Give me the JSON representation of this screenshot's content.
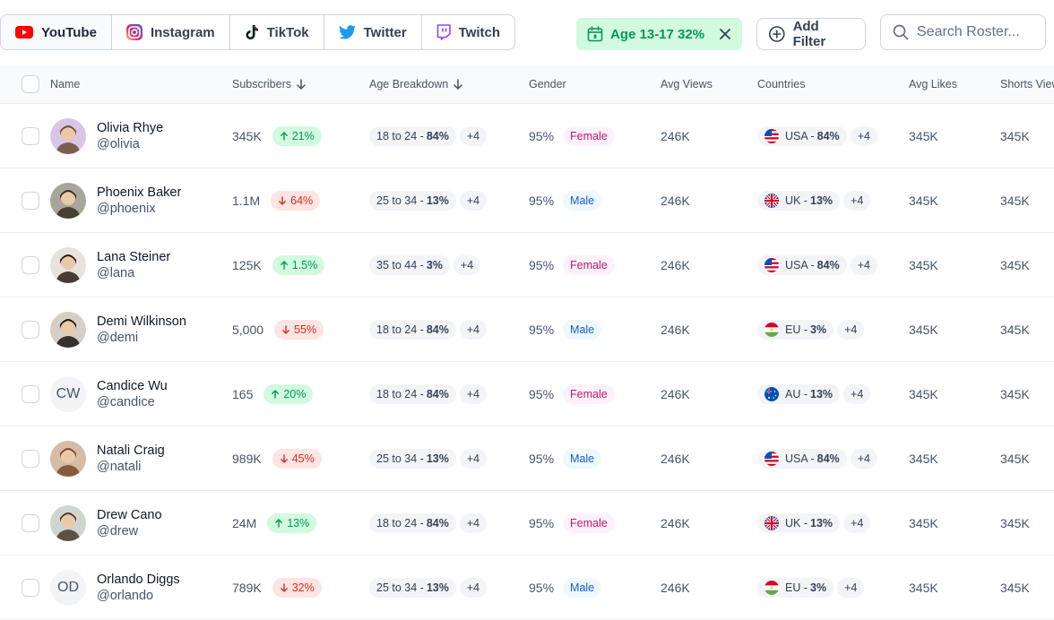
{
  "platforms": [
    {
      "label": "YouTube",
      "icon": "youtube-icon",
      "active": true
    },
    {
      "label": "Instagram",
      "icon": "instagram-icon",
      "active": false
    },
    {
      "label": "TikTok",
      "icon": "tiktok-icon",
      "active": false
    },
    {
      "label": "Twitter",
      "icon": "twitter-icon",
      "active": false
    },
    {
      "label": "Twitch",
      "icon": "twitch-icon",
      "active": false
    }
  ],
  "filter_chip": {
    "label": "Age 13-17 32%"
  },
  "add_filter": {
    "label": "Add Filter"
  },
  "search": {
    "placeholder": "Search Roster...",
    "value": ""
  },
  "columns": {
    "name": "Name",
    "subscribers": "Subscribers",
    "age": "Age Breakdown",
    "gender": "Gender",
    "avg_views": "Avg Views",
    "countries": "Countries",
    "avg_likes": "Avg Likes",
    "shorts_views": "Shorts Views"
  },
  "colors": {
    "up": "#039855",
    "down": "#d92d20",
    "female": "#c11574",
    "male": "#175cd3"
  },
  "rows": [
    {
      "name": "Olivia Rhye",
      "handle": "@olivia",
      "avatar": "photo",
      "subscribers": "345K",
      "trend": "up",
      "trend_value": "21%",
      "age_range": "18 to 24 -",
      "age_pct": "84%",
      "age_more": "+4",
      "gender_pct": "95%",
      "gender": "Female",
      "avg_views": "246K",
      "country_flag": "us",
      "country": "USA -",
      "country_pct": "84%",
      "country_more": "+4",
      "avg_likes": "345K",
      "shorts_views": "345K"
    },
    {
      "name": "Phoenix Baker",
      "handle": "@phoenix",
      "avatar": "photo",
      "subscribers": "1.1M",
      "trend": "down",
      "trend_value": "64%",
      "age_range": "25 to 34 -",
      "age_pct": "13%",
      "age_more": "+4",
      "gender_pct": "95%",
      "gender": "Male",
      "avg_views": "246K",
      "country_flag": "uk",
      "country": "UK -",
      "country_pct": "13%",
      "country_more": "+4",
      "avg_likes": "345K",
      "shorts_views": "345K"
    },
    {
      "name": "Lana Steiner",
      "handle": "@lana",
      "avatar": "photo",
      "subscribers": "125K",
      "trend": "up",
      "trend_value": "1.5%",
      "age_range": "35 to 44 -",
      "age_pct": "3%",
      "age_more": "+4",
      "gender_pct": "95%",
      "gender": "Female",
      "avg_views": "246K",
      "country_flag": "us",
      "country": "USA -",
      "country_pct": "84%",
      "country_more": "+4",
      "avg_likes": "345K",
      "shorts_views": "345K"
    },
    {
      "name": "Demi Wilkinson",
      "handle": "@demi",
      "avatar": "photo",
      "subscribers": "5,000",
      "trend": "down",
      "trend_value": "55%",
      "age_range": "18 to 24 -",
      "age_pct": "84%",
      "age_more": "+4",
      "gender_pct": "95%",
      "gender": "Male",
      "avg_views": "246K",
      "country_flag": "eu",
      "country": "EU -",
      "country_pct": "3%",
      "country_more": "+4",
      "avg_likes": "345K",
      "shorts_views": "345K"
    },
    {
      "name": "Candice Wu",
      "handle": "@candice",
      "avatar": "initials",
      "initials": "CW",
      "subscribers": "165",
      "trend": "up",
      "trend_value": "20%",
      "age_range": "18 to 24 -",
      "age_pct": "84%",
      "age_more": "+4",
      "gender_pct": "95%",
      "gender": "Female",
      "avg_views": "246K",
      "country_flag": "au",
      "country": "AU -",
      "country_pct": "13%",
      "country_more": "+4",
      "avg_likes": "345K",
      "shorts_views": "345K"
    },
    {
      "name": "Natali Craig",
      "handle": "@natali",
      "avatar": "photo",
      "subscribers": "989K",
      "trend": "down",
      "trend_value": "45%",
      "age_range": "25 to 34 -",
      "age_pct": "13%",
      "age_more": "+4",
      "gender_pct": "95%",
      "gender": "Male",
      "avg_views": "246K",
      "country_flag": "us",
      "country": "USA -",
      "country_pct": "84%",
      "country_more": "+4",
      "avg_likes": "345K",
      "shorts_views": "345K"
    },
    {
      "name": "Drew Cano",
      "handle": "@drew",
      "avatar": "photo",
      "subscribers": "24M",
      "trend": "up",
      "trend_value": "13%",
      "age_range": "18 to 24 -",
      "age_pct": "84%",
      "age_more": "+4",
      "gender_pct": "95%",
      "gender": "Female",
      "avg_views": "246K",
      "country_flag": "uk",
      "country": "UK -",
      "country_pct": "13%",
      "country_more": "+4",
      "avg_likes": "345K",
      "shorts_views": "345K"
    },
    {
      "name": "Orlando Diggs",
      "handle": "@orlando",
      "avatar": "initials",
      "initials": "OD",
      "subscribers": "789K",
      "trend": "down",
      "trend_value": "32%",
      "age_range": "25 to 34 -",
      "age_pct": "13%",
      "age_more": "+4",
      "gender_pct": "95%",
      "gender": "Male",
      "avg_views": "246K",
      "country_flag": "eu",
      "country": "EU -",
      "country_pct": "3%",
      "country_more": "+4",
      "avg_likes": "345K",
      "shorts_views": "345K"
    }
  ]
}
